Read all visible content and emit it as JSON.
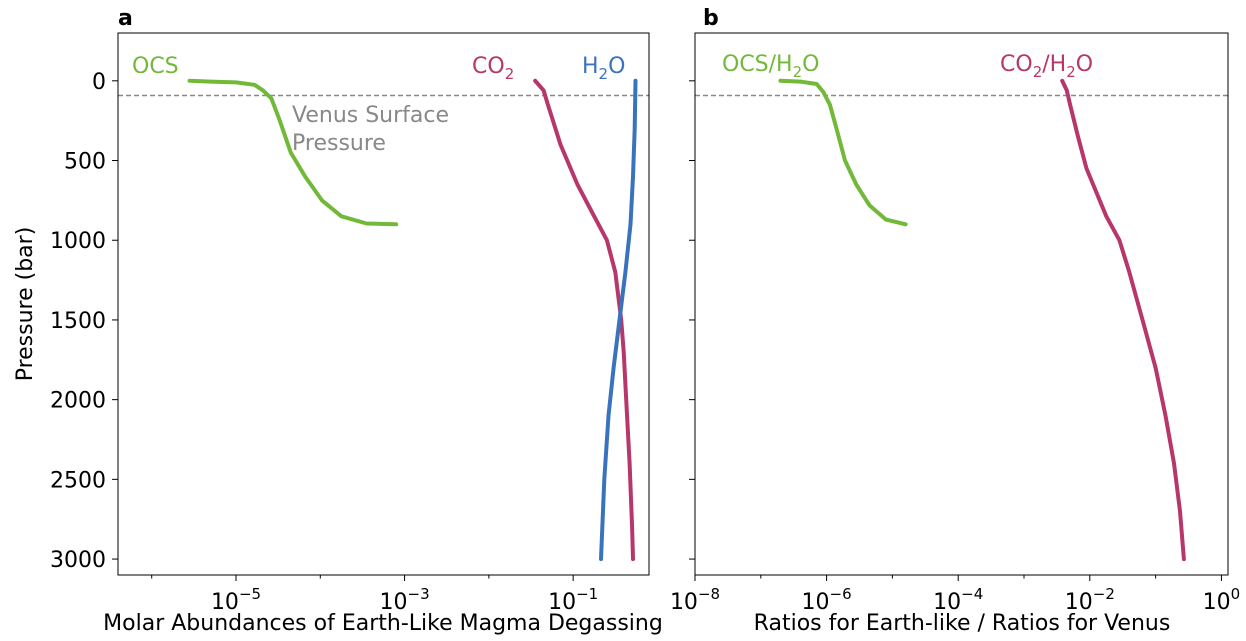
{
  "colors": {
    "ocs": "#72b93a",
    "co2": "#b7366b",
    "h2o": "#3a73bd",
    "reference": "#888888",
    "axes": "#000000"
  },
  "chart_data": [
    {
      "type": "line",
      "panel_label": "a",
      "xlabel": "Molar Abundances of Earth-Like Magma Degassing",
      "ylabel": "Pressure (bar)",
      "xscale": "log",
      "xlim_log10": [
        -6.4,
        -0.1
      ],
      "ylim": [
        3100,
        -300
      ],
      "x_ticks_log10": [
        -5,
        -3,
        -1
      ],
      "x_tick_labels": [
        {
          "base": "10",
          "exp": "−5"
        },
        {
          "base": "10",
          "exp": "−3"
        },
        {
          "base": "10",
          "exp": "−1"
        }
      ],
      "y_ticks": [
        0,
        500,
        1000,
        1500,
        2000,
        2500,
        3000
      ],
      "y_tick_labels": [
        "0",
        "500",
        "1000",
        "1500",
        "2000",
        "2500",
        "3000"
      ],
      "reference_line": {
        "y": 92,
        "label_line1": "Venus Surface",
        "label_line2": "Pressure"
      },
      "series": [
        {
          "key": "ocs",
          "label_main": "OCS",
          "label_sub": "",
          "label_tail": "",
          "points": [
            [
              -5.55,
              0
            ],
            [
              -5.3,
              5
            ],
            [
              -5.0,
              10
            ],
            [
              -4.78,
              25
            ],
            [
              -4.68,
              60
            ],
            [
              -4.58,
              110
            ],
            [
              -4.48,
              250
            ],
            [
              -4.35,
              450
            ],
            [
              -4.18,
              600
            ],
            [
              -3.98,
              750
            ],
            [
              -3.75,
              850
            ],
            [
              -3.45,
              895
            ],
            [
              -3.1,
              900
            ]
          ]
        },
        {
          "key": "co2",
          "label_main": "CO",
          "label_sub": "2",
          "label_tail": "",
          "points": [
            [
              -1.45,
              0
            ],
            [
              -1.35,
              60
            ],
            [
              -1.3,
              150
            ],
            [
              -1.15,
              400
            ],
            [
              -0.95,
              650
            ],
            [
              -0.75,
              850
            ],
            [
              -0.6,
              1000
            ],
            [
              -0.5,
              1200
            ],
            [
              -0.43,
              1500
            ],
            [
              -0.4,
              1700
            ],
            [
              -0.37,
              2000
            ],
            [
              -0.33,
              2400
            ],
            [
              -0.3,
              2800
            ],
            [
              -0.29,
              3000
            ]
          ]
        },
        {
          "key": "h2o",
          "label_main": "H",
          "label_sub": "2",
          "label_tail": "O",
          "points": [
            [
              -0.26,
              0
            ],
            [
              -0.27,
              300
            ],
            [
              -0.29,
              600
            ],
            [
              -0.32,
              900
            ],
            [
              -0.38,
              1200
            ],
            [
              -0.45,
              1500
            ],
            [
              -0.52,
              1800
            ],
            [
              -0.58,
              2100
            ],
            [
              -0.63,
              2500
            ],
            [
              -0.67,
              3000
            ]
          ]
        }
      ]
    },
    {
      "type": "line",
      "panel_label": "b",
      "xlabel": "Ratios for Earth-like / Ratios for Venus",
      "ylabel": "",
      "xscale": "log",
      "xlim_log10": [
        -8,
        0.1
      ],
      "ylim": [
        3100,
        -300
      ],
      "x_ticks_log10": [
        -8,
        -6,
        -4,
        -2,
        0
      ],
      "x_tick_labels": [
        {
          "base": "10",
          "exp": "−8"
        },
        {
          "base": "10",
          "exp": "−6"
        },
        {
          "base": "10",
          "exp": "−4"
        },
        {
          "base": "10",
          "exp": "−2"
        },
        {
          "base": "10",
          "exp": "0"
        }
      ],
      "y_ticks": [
        0,
        500,
        1000,
        1500,
        2000,
        2500,
        3000
      ],
      "reference_line": {
        "y": 92
      },
      "series": [
        {
          "key": "ocs",
          "label_main": "OCS/H",
          "label_sub": "2",
          "label_tail": "O",
          "points": [
            [
              -6.7,
              0
            ],
            [
              -6.4,
              5
            ],
            [
              -6.15,
              20
            ],
            [
              -6.05,
              70
            ],
            [
              -5.95,
              150
            ],
            [
              -5.85,
              300
            ],
            [
              -5.72,
              500
            ],
            [
              -5.55,
              650
            ],
            [
              -5.35,
              780
            ],
            [
              -5.1,
              870
            ],
            [
              -4.8,
              900
            ]
          ]
        },
        {
          "key": "co2",
          "label_main": "CO",
          "label_sub": "2",
          "label_tail": "/H",
          "label_sub2": "2",
          "label_tail2": "O",
          "points": [
            [
              -2.42,
              0
            ],
            [
              -2.35,
              60
            ],
            [
              -2.3,
              150
            ],
            [
              -2.18,
              350
            ],
            [
              -2.05,
              550
            ],
            [
              -1.9,
              700
            ],
            [
              -1.75,
              850
            ],
            [
              -1.55,
              1000
            ],
            [
              -1.4,
              1200
            ],
            [
              -1.2,
              1500
            ],
            [
              -1.0,
              1800
            ],
            [
              -0.85,
              2100
            ],
            [
              -0.72,
              2400
            ],
            [
              -0.63,
              2700
            ],
            [
              -0.57,
              3000
            ]
          ]
        }
      ]
    }
  ]
}
